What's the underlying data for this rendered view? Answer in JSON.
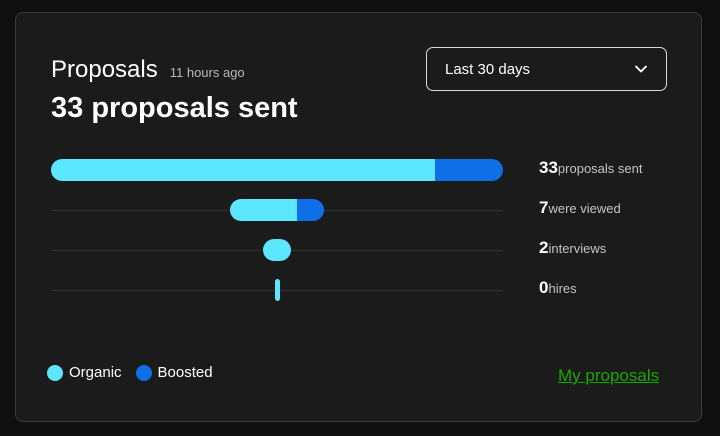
{
  "header": {
    "title": "Proposals",
    "timestamp": "11 hours ago",
    "headline": "33 proposals sent"
  },
  "period_select": {
    "selected": "Last 30 days",
    "icon": "chevron-down-icon"
  },
  "funnel": [
    {
      "number": "33",
      "label": "proposals sent",
      "organic_fraction": 0.85,
      "boosted_fraction": 0.15
    },
    {
      "number": "7",
      "label": "were viewed",
      "organic_fraction": 0.15,
      "boosted_fraction": 0.06
    },
    {
      "number": "2",
      "label": "interviews",
      "organic_fraction": 0.06,
      "boosted_fraction": 0.0
    },
    {
      "number": "0",
      "label": "hires",
      "organic_fraction": 0.01,
      "boosted_fraction": 0.0
    }
  ],
  "legend": {
    "organic": "Organic",
    "boosted": "Boosted"
  },
  "link": {
    "label": "My proposals"
  },
  "colors": {
    "organic": "#5ce6ff",
    "boosted": "#0f6fe6",
    "link": "#14a800",
    "background": "#1b1b1b"
  }
}
